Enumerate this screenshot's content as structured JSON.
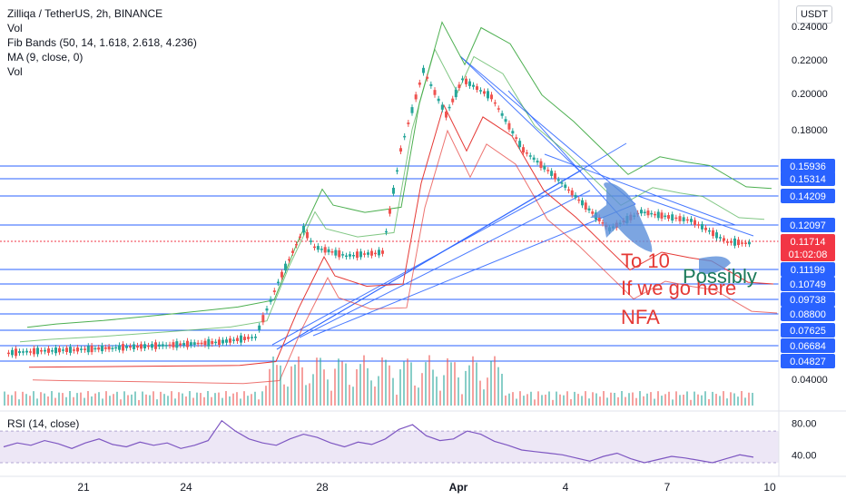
{
  "header": {
    "symbol_line": "Zilliqa / TetherUS, 2h, BINANCE",
    "indicators": [
      "Vol",
      "Fib Bands (50, 14, 1.618, 2.618, 4.236)",
      "MA (9, close, 0)",
      "Vol"
    ]
  },
  "currency_button": "USDT",
  "rsi_label": "RSI (14, close)",
  "annotations": {
    "line1": "To 10",
    "line2": "If we go here",
    "line3": "NFA",
    "possibly": "Possibly"
  },
  "colors": {
    "background": "#ffffff",
    "level_line": "#2962ff",
    "level_badge": "#2962ff",
    "up_candle": "#26a69a",
    "down_candle": "#ef5350",
    "price_badge": "#f23645",
    "fib_outer": "#4caf50",
    "fib_inner": "#e53935",
    "rsi_line": "#7e57c2",
    "rsi_band": "#ede7f6",
    "annotation_red": "#e53935",
    "annotation_teal": "#1b7a5a",
    "rocket": "#5b8fd9"
  },
  "chart_data": {
    "type": "candlestick",
    "title": "Zilliqa / TetherUS, 2h, BINANCE",
    "y_axis_ticks": [
      0.24,
      0.22,
      0.2,
      0.18,
      0.04
    ],
    "ylim": [
      0.03,
      0.24
    ],
    "x_axis_ticks": [
      "21",
      "24",
      "28",
      "Apr",
      "4",
      "7",
      "10"
    ],
    "horizontal_levels": [
      0.15936,
      0.15314,
      0.14209,
      0.12097,
      0.11199,
      0.10749,
      0.09738,
      0.088,
      0.07625,
      0.06684,
      0.04827
    ],
    "level_labels": [
      "0.15936",
      "0.15314",
      "0.14209",
      "0.12097",
      "0.11199",
      "0.10749",
      "0.09738",
      "0.08800",
      "0.07625",
      "0.06684",
      "0.04827"
    ],
    "tick_labels": [
      "0.24000",
      "0.22000",
      "0.20000",
      "0.18000",
      "0.04000"
    ],
    "last_price": 0.11714,
    "last_price_label": "0.11714",
    "countdown": "01:02:08",
    "price_path": [
      [
        "19 Mar",
        0.055
      ],
      [
        "20 Mar",
        0.056
      ],
      [
        "21 Mar",
        0.057
      ],
      [
        "22 Mar",
        0.058
      ],
      [
        "23 Mar",
        0.059
      ],
      [
        "24 Mar",
        0.06
      ],
      [
        "25 Mar",
        0.061
      ],
      [
        "26 Mar",
        0.064
      ],
      [
        "27 Mar",
        0.095
      ],
      [
        "27 Mar 12h",
        0.125
      ],
      [
        "28 Mar",
        0.115
      ],
      [
        "29 Mar",
        0.11
      ],
      [
        "30 Mar",
        0.112
      ],
      [
        "30 Mar 12h",
        0.17
      ],
      [
        "31 Mar",
        0.215
      ],
      [
        "31 Mar 12h",
        0.19
      ],
      [
        "1 Apr",
        0.21
      ],
      [
        "2 Apr",
        0.2
      ],
      [
        "3 Apr",
        0.17
      ],
      [
        "4 Apr",
        0.155
      ],
      [
        "4 Apr 12h",
        0.14
      ],
      [
        "5 Apr",
        0.125
      ],
      [
        "6 Apr",
        0.135
      ],
      [
        "7 Apr",
        0.132
      ],
      [
        "8 Apr",
        0.13
      ],
      [
        "9 Apr",
        0.118
      ],
      [
        "9 Apr 12h",
        0.117
      ]
    ],
    "rsi": {
      "name": "RSI (14, close)",
      "ticks": [
        80.0,
        40.0
      ],
      "tick_labels": [
        "80.00",
        "40.00"
      ],
      "band": [
        30,
        70
      ],
      "values": [
        50,
        55,
        52,
        58,
        54,
        48,
        55,
        60,
        53,
        50,
        56,
        52,
        55,
        48,
        52,
        58,
        83,
        70,
        60,
        55,
        52,
        60,
        66,
        62,
        55,
        50,
        56,
        53,
        60,
        72,
        78,
        64,
        58,
        60,
        70,
        66,
        57,
        52,
        46,
        44,
        42,
        40,
        36,
        32,
        38,
        42,
        35,
        30,
        34,
        38,
        36,
        33,
        30,
        35,
        40,
        37
      ]
    },
    "grid": false,
    "legend": "top-left"
  }
}
